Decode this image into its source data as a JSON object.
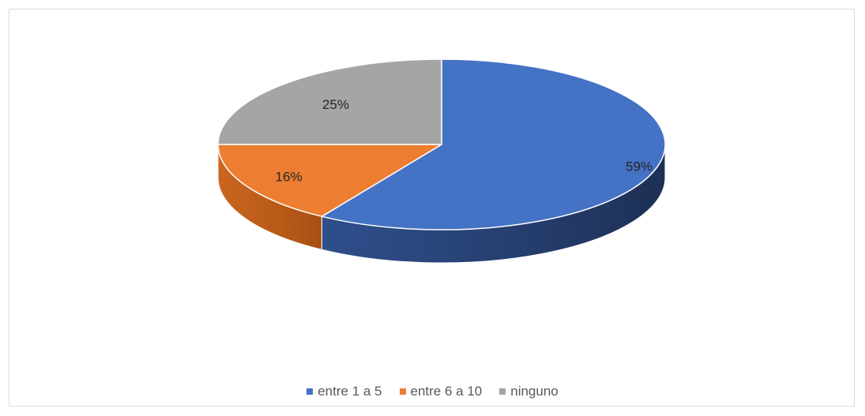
{
  "chart_data": {
    "type": "pie",
    "title": "",
    "series": [
      {
        "values": [
          59,
          16,
          25
        ]
      }
    ],
    "categories": [
      "entre 1 a 5",
      "entre 6 a 10",
      "ninguno"
    ],
    "values": [
      59,
      16,
      25
    ],
    "data_labels": [
      "59%",
      "16%",
      "25%"
    ],
    "colors": [
      "#4472C4",
      "#ED7D31",
      "#A5A5A5"
    ],
    "style": "3d",
    "legend_position": "bottom"
  }
}
